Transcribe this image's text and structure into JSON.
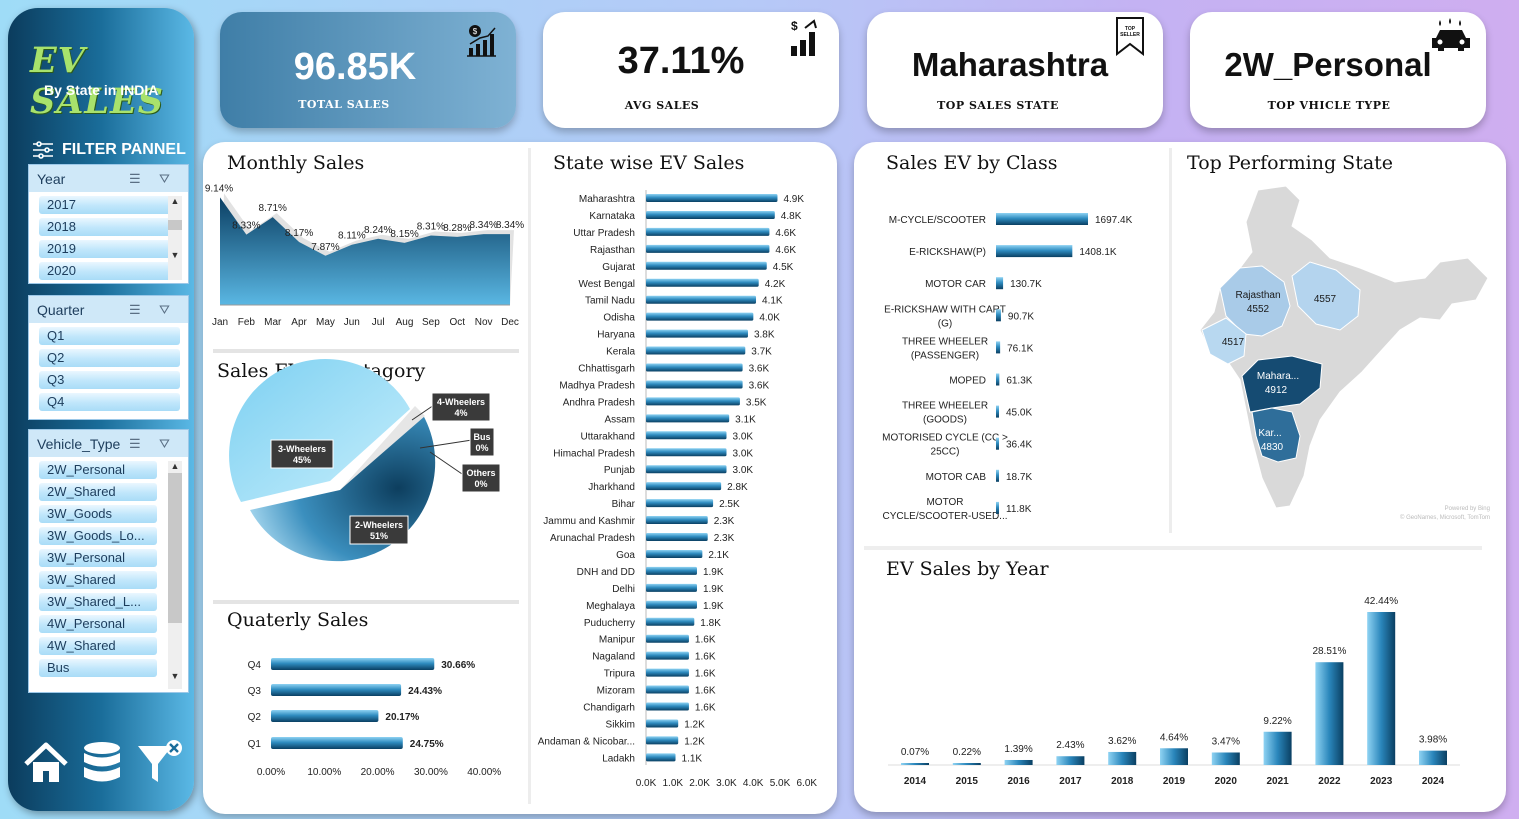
{
  "sidebar": {
    "logo": "EV SALES",
    "subtitle": "By State in INDIA",
    "filter_title": "FILTER PANNEL",
    "year": {
      "header": "Year",
      "items": [
        "2017",
        "2018",
        "2019",
        "2020"
      ]
    },
    "quarter": {
      "header": "Quarter",
      "items": [
        "Q1",
        "Q2",
        "Q3",
        "Q4"
      ]
    },
    "vehicle": {
      "header": "Vehicle_Type",
      "items": [
        "2W_Personal",
        "2W_Shared",
        "3W_Goods",
        "3W_Goods_Lo...",
        "3W_Personal",
        "3W_Shared",
        "3W_Shared_L...",
        "4W_Personal",
        "4W_Shared",
        "Bus"
      ]
    }
  },
  "kpis": {
    "total": {
      "value": "96.85K",
      "label": "TOTAL  SALES"
    },
    "avg": {
      "value": "37.11%",
      "label": "AVG SALES"
    },
    "state": {
      "value": "Maharashtra",
      "label": "TOP SALES STATE",
      "badge": "TOP SELLER"
    },
    "vehicle": {
      "value": "2W_Personal",
      "label": "TOP VHICLE TYPE"
    }
  },
  "titles": {
    "monthly": "Monthly Sales",
    "category": "Sales EV by Catagory",
    "quarterly": "Quaterly Sales",
    "state": "State wise EV Sales",
    "class": "Sales EV by Class",
    "map": "Top Performing State",
    "year": "EV Sales by Year"
  },
  "colors": {
    "bar_dark": "#0b4a6f",
    "bar_light": "#4fb6e3",
    "accent": "#1b6f9c"
  },
  "map": {
    "labels": [
      {
        "name": "Rajasthan",
        "value": "4552"
      },
      {
        "name": "",
        "value": "4557"
      },
      {
        "name": "",
        "value": "4517"
      },
      {
        "name": "Mahara...",
        "value": "4912"
      },
      {
        "name": "Kar...",
        "value": "4830"
      }
    ],
    "credit_1": "Powered by Bing",
    "credit_2": "© GeoNames, Microsoft, TomTom"
  },
  "chart_data": [
    {
      "type": "area",
      "title": "Monthly Sales",
      "categories": [
        "Jan",
        "Feb",
        "Mar",
        "Apr",
        "May",
        "Jun",
        "Jul",
        "Aug",
        "Sep",
        "Oct",
        "Nov",
        "Dec"
      ],
      "values": [
        9.14,
        8.33,
        8.71,
        8.17,
        7.87,
        8.11,
        8.24,
        8.15,
        8.31,
        8.28,
        8.34,
        8.34
      ],
      "data_labels": [
        "9.14%",
        "8.33%",
        "8.71%",
        "8.17%",
        "7.87%",
        "8.11%",
        "8.24%",
        "8.15%",
        "8.31%",
        "8.28%",
        "8.34%",
        "8.34%"
      ]
    },
    {
      "type": "pie",
      "title": "Sales EV by Catagory",
      "slices": [
        {
          "name": "3-Wheelers",
          "value": 45,
          "label": "45%"
        },
        {
          "name": "2-Wheelers",
          "value": 51,
          "label": "51%"
        },
        {
          "name": "4-Wheelers",
          "value": 4,
          "label": "4%"
        },
        {
          "name": "Bus",
          "value": 0,
          "label": "0%"
        },
        {
          "name": "Others",
          "value": 0,
          "label": "0%"
        }
      ]
    },
    {
      "type": "bar",
      "title": "Quaterly Sales",
      "orientation": "horizontal",
      "categories": [
        "Q4",
        "Q3",
        "Q2",
        "Q1"
      ],
      "values": [
        30.66,
        24.43,
        20.17,
        24.75
      ],
      "data_labels": [
        "30.66%",
        "24.43%",
        "20.17%",
        "24.75%"
      ],
      "xticks": [
        "0.00%",
        "10.00%",
        "20.00%",
        "30.00%",
        "40.00%"
      ],
      "xlim": [
        0,
        40
      ]
    },
    {
      "type": "bar",
      "title": "State wise EV Sales",
      "orientation": "horizontal",
      "categories": [
        "Maharashtra",
        "Karnataka",
        "Uttar Pradesh",
        "Rajasthan",
        "Gujarat",
        "West Bengal",
        "Tamil Nadu",
        "Odisha",
        "Haryana",
        "Kerala",
        "Chhattisgarh",
        "Madhya Pradesh",
        "Andhra Pradesh",
        "Assam",
        "Uttarakhand",
        "Himachal Pradesh",
        "Punjab",
        "Jharkhand",
        "Bihar",
        "Jammu and Kashmir",
        "Arunachal Pradesh",
        "Goa",
        "DNH and DD",
        "Delhi",
        "Meghalaya",
        "Puducherry",
        "Manipur",
        "Nagaland",
        "Tripura",
        "Mizoram",
        "Chandigarh",
        "Sikkim",
        "Andaman & Nicobar...",
        "Ladakh"
      ],
      "values": [
        4.9,
        4.8,
        4.6,
        4.6,
        4.5,
        4.2,
        4.1,
        4.0,
        3.8,
        3.7,
        3.6,
        3.6,
        3.5,
        3.1,
        3.0,
        3.0,
        3.0,
        2.8,
        2.5,
        2.3,
        2.3,
        2.1,
        1.9,
        1.9,
        1.9,
        1.8,
        1.6,
        1.6,
        1.6,
        1.6,
        1.6,
        1.2,
        1.2,
        1.1
      ],
      "data_labels": [
        "4.9K",
        "4.8K",
        "4.6K",
        "4.6K",
        "4.5K",
        "4.2K",
        "4.1K",
        "4.0K",
        "3.8K",
        "3.7K",
        "3.6K",
        "3.6K",
        "3.5K",
        "3.1K",
        "3.0K",
        "3.0K",
        "3.0K",
        "2.8K",
        "2.5K",
        "2.3K",
        "2.3K",
        "2.1K",
        "1.9K",
        "1.9K",
        "1.9K",
        "1.8K",
        "1.6K",
        "1.6K",
        "1.6K",
        "1.6K",
        "1.6K",
        "1.2K",
        "1.2K",
        "1.1K"
      ],
      "xticks": [
        "0.0K",
        "1.0K",
        "2.0K",
        "3.0K",
        "4.0K",
        "5.0K",
        "6.0K"
      ],
      "xlim": [
        0,
        6
      ]
    },
    {
      "type": "bar",
      "title": "Sales EV by Class",
      "orientation": "horizontal",
      "categories": [
        [
          "M-CYCLE/SCOOTER"
        ],
        [
          "E-RICKSHAW(P)"
        ],
        [
          "MOTOR CAR"
        ],
        [
          "E-RICKSHAW WITH CART",
          "(G)"
        ],
        [
          "THREE WHEELER",
          "(PASSENGER)"
        ],
        [
          "MOPED"
        ],
        [
          "THREE WHEELER",
          "(GOODS)"
        ],
        [
          "MOTORISED CYCLE (CC >",
          "25CC)"
        ],
        [
          "MOTOR CAB"
        ],
        [
          "MOTOR",
          "CYCLE/SCOOTER-USED..."
        ]
      ],
      "values": [
        1697.4,
        1408.1,
        130.7,
        90.7,
        76.1,
        61.3,
        45.0,
        36.4,
        18.7,
        11.8
      ],
      "data_labels": [
        "1697.4K",
        "1408.1K",
        "130.7K",
        "90.7K",
        "76.1K",
        "61.3K",
        "45.0K",
        "36.4K",
        "18.7K",
        "11.8K"
      ]
    },
    {
      "type": "bar",
      "title": "EV Sales by Year",
      "categories": [
        "2014",
        "2015",
        "2016",
        "2017",
        "2018",
        "2019",
        "2020",
        "2021",
        "2022",
        "2023",
        "2024"
      ],
      "values": [
        0.07,
        0.22,
        1.39,
        2.43,
        3.62,
        4.64,
        3.47,
        9.22,
        28.51,
        42.44,
        3.98
      ],
      "data_labels": [
        "0.07%",
        "0.22%",
        "1.39%",
        "2.43%",
        "3.62%",
        "4.64%",
        "3.47%",
        "9.22%",
        "28.51%",
        "42.44%",
        "3.98%"
      ]
    }
  ]
}
